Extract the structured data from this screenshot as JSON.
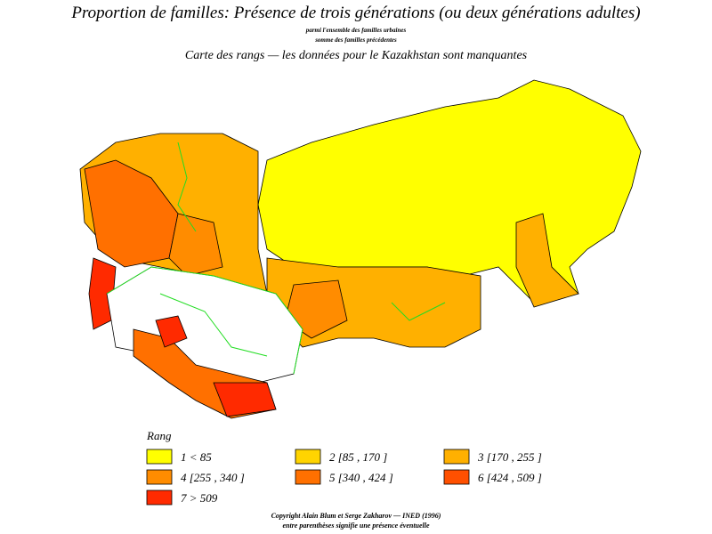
{
  "title": "Proportion de familles: Présence de trois générations (ou deux générations adultes)",
  "subtitle_1": "parmi l'ensemble des familles urbaines",
  "subtitle_2": "somme des familles précédentes",
  "subtitle_3": "Carte des  rangs  —  les données pour le Kazakhstan sont manquantes",
  "legend": {
    "title": "Rang",
    "items": [
      {
        "label": "1  <  85",
        "color": "#ffff00"
      },
      {
        "label": "2 [85 ,  170 ]",
        "color": "#ffd400"
      },
      {
        "label": "3 [170 ,  255 ]",
        "color": "#ffb000"
      },
      {
        "label": "4 [255 ,  340 ]",
        "color": "#ff8c00"
      },
      {
        "label": "5 [340 ,  424 ]",
        "color": "#ff7000"
      },
      {
        "label": "6 [424 ,  509 ]",
        "color": "#ff5000"
      },
      {
        "label": "7  >  509",
        "color": "#ff2a00"
      }
    ]
  },
  "footer_1": "Copyright Alain Blum et Serge Zakharov  —  INED (1996)",
  "footer_2": "entre parenthèses signifie une présence éventuelle"
}
